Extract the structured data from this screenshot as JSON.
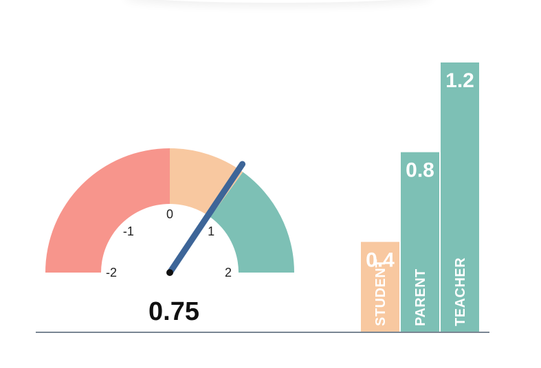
{
  "colors": {
    "red": "#f7958c",
    "peach": "#f8c8a0",
    "teal": "#7dc0b5",
    "needle": "#3d6598",
    "baseline": "#4d5d6e"
  },
  "chart_data": [
    {
      "type": "gauge",
      "min": -2,
      "max": 2,
      "value": 0.75,
      "value_label": "0.75",
      "ticks": [
        "-2",
        "-1",
        "0",
        "1",
        "2"
      ],
      "bands": [
        {
          "from": -2,
          "to": 0,
          "color": "#f7958c"
        },
        {
          "from": 0,
          "to": 0.8,
          "color": "#f8c8a0"
        },
        {
          "from": 0.8,
          "to": 2,
          "color": "#7dc0b5"
        }
      ]
    },
    {
      "type": "bar",
      "categories": [
        "STUDENT",
        "PARENT",
        "TEACHER"
      ],
      "values": [
        0.4,
        0.8,
        1.2
      ],
      "value_labels": [
        "0.4",
        "0.8",
        "1.2"
      ],
      "colors": [
        "#f8c8a0",
        "#7dc0b5",
        "#7dc0b5"
      ],
      "ylim": [
        0,
        1.2
      ]
    }
  ]
}
